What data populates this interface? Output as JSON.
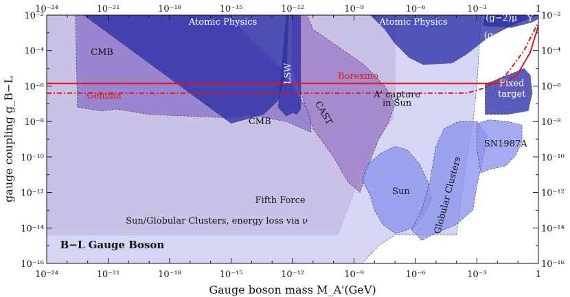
{
  "chart_data": {
    "type": "area",
    "title": "B−L Gauge Boson",
    "xlabel": "Gauge boson mass M_A'(GeV)",
    "ylabel": "gauge coupling g_B−L",
    "x_scale": "log",
    "y_scale": "log",
    "xlim_exp": [
      -24,
      0
    ],
    "ylim_exp": [
      -16,
      -2
    ],
    "x_tick_exponents": [
      -24,
      -21,
      -18,
      -15,
      -12,
      -9,
      -6,
      -3,
      0
    ],
    "y_tick_exponents": [
      -16,
      -14,
      -12,
      -10,
      -8,
      -6,
      -4,
      -2
    ],
    "x_tick_labels": [
      "10⁻²⁴",
      "10⁻²¹",
      "10⁻¹⁸",
      "10⁻¹⁵",
      "10⁻¹²",
      "10⁻⁹",
      "10⁻⁶",
      "10⁻³",
      "1"
    ],
    "y_tick_labels": [
      "10⁻¹⁶",
      "10⁻¹⁴",
      "10⁻¹²",
      "10⁻¹⁰",
      "10⁻⁸",
      "10⁻⁶",
      "10⁻⁴",
      "10⁻²"
    ],
    "grid": false,
    "regions": [
      {
        "label": "Fifth Force",
        "color": "#b88aa8",
        "points": [
          [
            -24,
            -2
          ],
          [
            -24,
            -14.4
          ],
          [
            -9.8,
            -14.4
          ],
          [
            -9.5,
            -13.5
          ],
          [
            -9,
            -12
          ],
          [
            -8.5,
            -10.5
          ],
          [
            -7.8,
            -9
          ],
          [
            -7.1,
            -7.8
          ],
          [
            -7,
            -6.8
          ],
          [
            -7,
            -2
          ]
        ]
      },
      {
        "label": "Sun/Globular Clusters, energy loss via ν",
        "color": "#c9c9f2",
        "points": [
          [
            -24,
            -2
          ],
          [
            -24,
            -16
          ],
          [
            -8.6,
            -16
          ],
          [
            -7.8,
            -15
          ],
          [
            -7,
            -14.4
          ],
          [
            -4,
            -14.4
          ],
          [
            -3.5,
            -10
          ],
          [
            -3.2,
            -8
          ],
          [
            -3,
            -6
          ],
          [
            -2.9,
            -4
          ],
          [
            -2.8,
            -2
          ]
        ]
      },
      {
        "label": "CMB",
        "color": "#8d74c9",
        "points": [
          [
            -22.6,
            -2
          ],
          [
            -22.5,
            -7.2
          ],
          [
            -21.3,
            -7.4
          ],
          [
            -20.6,
            -7.3
          ],
          [
            -19,
            -7.6
          ],
          [
            -15,
            -7.8
          ],
          [
            -14.2,
            -7.6
          ],
          [
            -12.3,
            -8
          ],
          [
            -11.1,
            -8.6
          ],
          [
            -11.1,
            -7.6
          ],
          [
            -11.8,
            -6.4
          ],
          [
            -12.5,
            -5.1
          ],
          [
            -13.5,
            -4
          ],
          [
            -14.4,
            -3
          ],
          [
            -15,
            -2
          ]
        ]
      },
      {
        "label": "CAST",
        "color": "#9c7cc8",
        "points": [
          [
            -12,
            -2
          ],
          [
            -12,
            -5
          ],
          [
            -11,
            -8.4
          ],
          [
            -10,
            -10
          ],
          [
            -9.3,
            -11.4
          ],
          [
            -8.7,
            -12
          ],
          [
            -8.3,
            -10.5
          ],
          [
            -7.8,
            -9
          ],
          [
            -7.3,
            -8
          ],
          [
            -7,
            -7
          ],
          [
            -7.5,
            -6
          ],
          [
            -8.5,
            -4.8
          ],
          [
            -10,
            -3.6
          ],
          [
            -11,
            -2.8
          ],
          [
            -11.3,
            -2
          ]
        ]
      },
      {
        "label": "Sun",
        "color": "#8a94ec",
        "points": [
          [
            -8.2,
            -12.2
          ],
          [
            -8.6,
            -11.3
          ],
          [
            -8.4,
            -10.5
          ],
          [
            -7.7,
            -9.8
          ],
          [
            -7,
            -9.4
          ],
          [
            -6.4,
            -9.6
          ],
          [
            -5.8,
            -10.4
          ],
          [
            -5.4,
            -11.4
          ],
          [
            -5.2,
            -12.4
          ],
          [
            -5.6,
            -13.3
          ],
          [
            -6,
            -13.9
          ],
          [
            -6.6,
            -14.2
          ],
          [
            -7,
            -14.3
          ],
          [
            -7.6,
            -13.8
          ],
          [
            -8,
            -13
          ]
        ]
      },
      {
        "label": "Globular Clusters",
        "color": "#8a94ec",
        "points": [
          [
            -6.2,
            -14.1
          ],
          [
            -5.7,
            -13
          ],
          [
            -5.3,
            -11.4
          ],
          [
            -5,
            -9.4
          ],
          [
            -4.6,
            -8.4
          ],
          [
            -3.9,
            -8
          ],
          [
            -3,
            -8
          ],
          [
            -2.5,
            -8.8
          ],
          [
            -2.7,
            -10.1
          ],
          [
            -3,
            -11.6
          ],
          [
            -3.2,
            -13
          ],
          [
            -4,
            -13.8
          ],
          [
            -5,
            -14.3
          ],
          [
            -5.7,
            -14.7
          ]
        ]
      },
      {
        "label": "SN1987A",
        "color": "#8a94ec",
        "points": [
          [
            -3,
            -8.1
          ],
          [
            -2.4,
            -7.9
          ],
          [
            -1.5,
            -8
          ],
          [
            -0.8,
            -8.2
          ],
          [
            -0.8,
            -9.1
          ],
          [
            -1.1,
            -9.9
          ],
          [
            -1.6,
            -10.5
          ],
          [
            -2.4,
            -10.7
          ],
          [
            -2.8,
            -10.9
          ],
          [
            -3,
            -9.6
          ]
        ]
      },
      {
        "label": "Atomic Physics",
        "color": "#2b2fa6",
        "points": [
          [
            -22.2,
            -2
          ],
          [
            -15,
            -8.1
          ],
          [
            -13.4,
            -7.6
          ],
          [
            -12.7,
            -6.8
          ],
          [
            -12.3,
            -5.2
          ],
          [
            -12.2,
            -2
          ]
        ]
      },
      {
        "label": "LSW",
        "color": "#2b2fa6",
        "points": [
          [
            -12.3,
            -2
          ],
          [
            -12.7,
            -7.2
          ],
          [
            -12.3,
            -7.7
          ],
          [
            -12,
            -7.5
          ],
          [
            -11.8,
            -7.6
          ],
          [
            -11.6,
            -7.3
          ],
          [
            -11.6,
            -2
          ]
        ]
      },
      {
        "label": "Atomic Physics",
        "color": "#2b2fa6",
        "points": [
          [
            -8.2,
            -2
          ],
          [
            -7.5,
            -2.8
          ],
          [
            -7,
            -3.6
          ],
          [
            -6.3,
            -4.4
          ],
          [
            -5.6,
            -4.8
          ],
          [
            -4.2,
            -4.7
          ],
          [
            -3.5,
            -4.2
          ],
          [
            -2.5,
            -3.3
          ],
          [
            -1.5,
            -2.7
          ],
          [
            -0.5,
            -2.2
          ],
          [
            0,
            -2
          ]
        ]
      },
      {
        "label": "(g−2)_μ",
        "color": "#2b2fa6",
        "points": [
          [
            -2.6,
            -2
          ],
          [
            -2.7,
            -2.6
          ],
          [
            -1.3,
            -2.7
          ],
          [
            -0.3,
            -2.4
          ],
          [
            0,
            -2.2
          ],
          [
            0,
            -2
          ]
        ]
      },
      {
        "label": "Fixed target",
        "color": "#2b2fa6",
        "points": [
          [
            -2.6,
            -5.9
          ],
          [
            -1.3,
            -5.3
          ],
          [
            -0.7,
            -5
          ],
          [
            -0.4,
            -5.4
          ],
          [
            -0.3,
            -6.4
          ],
          [
            -0.5,
            -7.4
          ],
          [
            -1.5,
            -7.6
          ],
          [
            -2.6,
            -7.6
          ]
        ]
      }
    ],
    "lines": [
      {
        "label": "Borexino",
        "color": "#e0141a",
        "style": "solid",
        "points": [
          [
            -24,
            -5.85
          ],
          [
            -1.6,
            -5.85
          ],
          [
            -1,
            -5.3
          ],
          [
            -0.4,
            -4.1
          ],
          [
            0,
            -2.6
          ]
        ]
      },
      {
        "label": "Gemma",
        "color": "#e0141a",
        "style": "dashed",
        "points": [
          [
            -24,
            -6.4
          ],
          [
            -3.5,
            -6.4
          ],
          [
            -2.6,
            -6.1
          ],
          [
            -1.6,
            -5.4
          ],
          [
            -0.7,
            -4
          ],
          [
            0,
            -2.4
          ]
        ]
      }
    ],
    "annotations": [
      {
        "text": "Atomic Physics",
        "class": "white",
        "x": -15.4,
        "y": -2.55
      },
      {
        "text": "CMB",
        "class": "",
        "x": -21.3,
        "y": -4.25
      },
      {
        "text": "LSW",
        "class": "white",
        "x": -12.1,
        "y": -5.3,
        "rotate": -90
      },
      {
        "text": "Borexino",
        "class": "red",
        "x": -8.8,
        "y": -5.6
      },
      {
        "text": "Gemma",
        "class": "red",
        "x": -21.2,
        "y": -6.7
      },
      {
        "text": "CAST",
        "class": "",
        "x": -10.6,
        "y": -7.6,
        "rotate": 60
      },
      {
        "text": "A' capture",
        "class": "",
        "x": -6.9,
        "y": -6.65
      },
      {
        "text": "in Sun",
        "class": "",
        "x": -6.9,
        "y": -7.1
      },
      {
        "text": "CMB",
        "class": "",
        "x": -13.6,
        "y": -8.15
      },
      {
        "text": "Atomic Physics",
        "class": "white",
        "x": -6.1,
        "y": -2.55
      },
      {
        "text": "(g−2)μ",
        "class": "white",
        "x": -1.8,
        "y": -2.3
      },
      {
        "text": "(g−2)e",
        "class": "white",
        "x": -1.9,
        "y": -3.3
      },
      {
        "text": "Y",
        "class": "white",
        "x": -0.4,
        "y": -2.35
      },
      {
        "text": "Fixed",
        "class": "white",
        "x": -1.3,
        "y": -6.0
      },
      {
        "text": "target",
        "class": "white",
        "x": -1.3,
        "y": -6.6
      },
      {
        "text": "SN1987A",
        "class": "",
        "x": -1.6,
        "y": -9.4
      },
      {
        "text": "Sun",
        "class": "",
        "x": -6.7,
        "y": -12.1
      },
      {
        "text": "Globular Clusters",
        "class": "",
        "x": -4.3,
        "y": -12.2,
        "rotate": -75
      },
      {
        "text": "Fifth Force",
        "class": "",
        "x": -12.6,
        "y": -12.6
      },
      {
        "text": "Sun/Globular Clusters, energy loss via ν",
        "class": "",
        "x": -15.7,
        "y": -13.75
      },
      {
        "text": "B−L Gauge Boson",
        "class": "bold",
        "x": -20.8,
        "y": -15.15
      }
    ]
  }
}
